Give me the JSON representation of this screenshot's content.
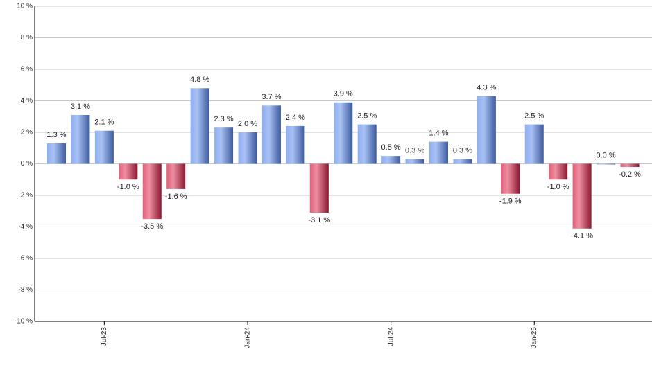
{
  "chart_data": {
    "type": "bar",
    "categories": [
      null,
      null,
      "Jul-23",
      null,
      null,
      null,
      null,
      null,
      "Jan-24",
      null,
      null,
      null,
      null,
      null,
      "Jul-24",
      null,
      null,
      null,
      null,
      null,
      "Jan-25",
      null,
      null,
      null,
      null
    ],
    "values": [
      1.3,
      3.1,
      2.1,
      -1.0,
      -3.5,
      -1.6,
      4.8,
      2.3,
      2.0,
      3.7,
      2.4,
      -3.1,
      3.9,
      2.5,
      0.5,
      0.3,
      1.4,
      0.3,
      4.3,
      -1.9,
      2.5,
      -1.0,
      -4.1,
      0.0,
      -0.2
    ],
    "value_labels": [
      "1.3 %",
      "3.1 %",
      "2.1 %",
      "-1.0 %",
      "-3.5 %",
      "-1.6 %",
      "4.8 %",
      "2.3 %",
      "2.0 %",
      "3.7 %",
      "2.4 %",
      "-3.1 %",
      "3.9 %",
      "2.5 %",
      "0.5 %",
      "0.3 %",
      "1.4 %",
      "0.3 %",
      "4.3 %",
      "-1.9 %",
      "2.5 %",
      "-1.0 %",
      "-4.1 %",
      "0.0 %",
      "-0.2 %"
    ],
    "positive_color": "#6f8fd8",
    "negative_color": "#c8284a",
    "ylim": [
      -10,
      10
    ],
    "yticks": [
      {
        "value": -10,
        "label": "-10 %"
      },
      {
        "value": -8,
        "label": "-8 %"
      },
      {
        "value": -6,
        "label": "-6 %"
      },
      {
        "value": -4,
        "label": "-4 %"
      },
      {
        "value": -2,
        "label": "-2 %"
      },
      {
        "value": 0,
        "label": "0 %"
      },
      {
        "value": 2,
        "label": "2 %"
      },
      {
        "value": 4,
        "label": "4 %"
      },
      {
        "value": 6,
        "label": "6 %"
      },
      {
        "value": 8,
        "label": "8 %"
      },
      {
        "value": 10,
        "label": "10 %"
      }
    ],
    "grid": true
  }
}
